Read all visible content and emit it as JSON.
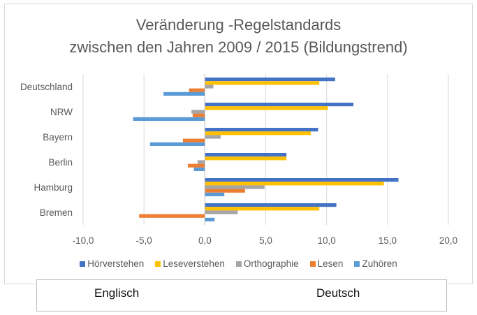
{
  "chart_data": {
    "type": "bar",
    "orientation": "horizontal",
    "title": "Veränderung -Regelstandards zwischen den Jahren 2009 / 2015 (Bildungstrend)",
    "title_lines": [
      "Veränderung -Regelstandards",
      "zwischen den Jahren 2009 / 2015 (Bildungstrend)"
    ],
    "categories": [
      "Deutschland",
      "NRW",
      "Bayern",
      "Berlin",
      "Hamburg",
      "Bremen"
    ],
    "series": [
      {
        "name": "Hörverstehen",
        "color": "#4472C4",
        "values": [
          10.7,
          12.2,
          9.3,
          6.7,
          15.9,
          10.8
        ]
      },
      {
        "name": "Leseverstehen",
        "color": "#FFC000",
        "values": [
          9.4,
          10.1,
          8.7,
          6.7,
          14.7,
          9.4
        ]
      },
      {
        "name": "Orthographie",
        "color": "#A5A5A5",
        "values": [
          0.7,
          -1.1,
          1.3,
          -0.6,
          4.9,
          2.7
        ]
      },
      {
        "name": "Lesen",
        "color": "#ED7D31",
        "values": [
          -1.3,
          -1.0,
          -1.8,
          -1.4,
          3.3,
          -5.4
        ]
      },
      {
        "name": "Zuhören",
        "color": "#5B9BD5",
        "values": [
          -3.4,
          -5.9,
          -4.5,
          -0.9,
          1.6,
          0.8
        ]
      }
    ],
    "xlim": [
      -10,
      20
    ],
    "xticks": [
      -10,
      -5,
      0,
      5,
      10,
      15,
      20
    ],
    "xtick_labels": [
      "-10,0",
      "-5,0",
      "0,0",
      "5,0",
      "10,0",
      "15,0",
      "20,0"
    ],
    "grid": true,
    "legend_position": "bottom",
    "xlabel": "",
    "ylabel": ""
  },
  "footer": {
    "left_label": "Englisch",
    "right_label": "Deutsch"
  }
}
